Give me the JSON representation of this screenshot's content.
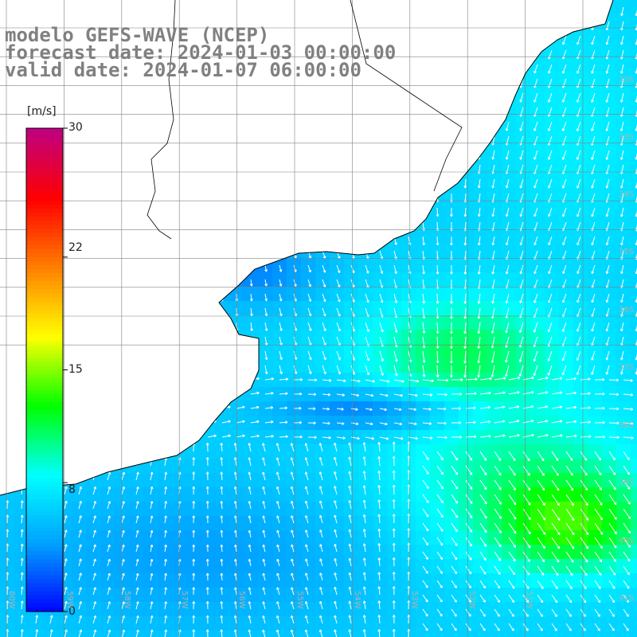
{
  "title": {
    "line1": "modelo GEFS-WAVE (NCEP)",
    "line2": "forecast date: 2024-01-03 00:00:00",
    "line3": "valid date: 2024-01-07 06:00:00"
  },
  "colorbar": {
    "unit": "[m/s]",
    "min": 0,
    "max": 30,
    "ticks": [
      "30",
      "22",
      "15",
      "8",
      "0"
    ],
    "tick_values": [
      30,
      22,
      15,
      8,
      0
    ],
    "stops": [
      "#0000ff",
      "#00a0ff",
      "#00ffff",
      "#00ff00",
      "#ffff00",
      "#ff8000",
      "#ff0000",
      "#c00080"
    ]
  },
  "latitude_labels": [
    "32S",
    "33S",
    "34S",
    "35S",
    "36S",
    "37S",
    "38S",
    "39S",
    "40S",
    "41S"
  ],
  "longitude_labels": [
    "60W",
    "59W",
    "58W",
    "57W",
    "56W",
    "55W",
    "54W",
    "53W",
    "52W",
    "51W"
  ],
  "map": {
    "field": "wind speed",
    "land_color": "#ffffff",
    "coast_color": "#000000",
    "grid_color": "#808080",
    "arrow_color": "#ffffff"
  }
}
